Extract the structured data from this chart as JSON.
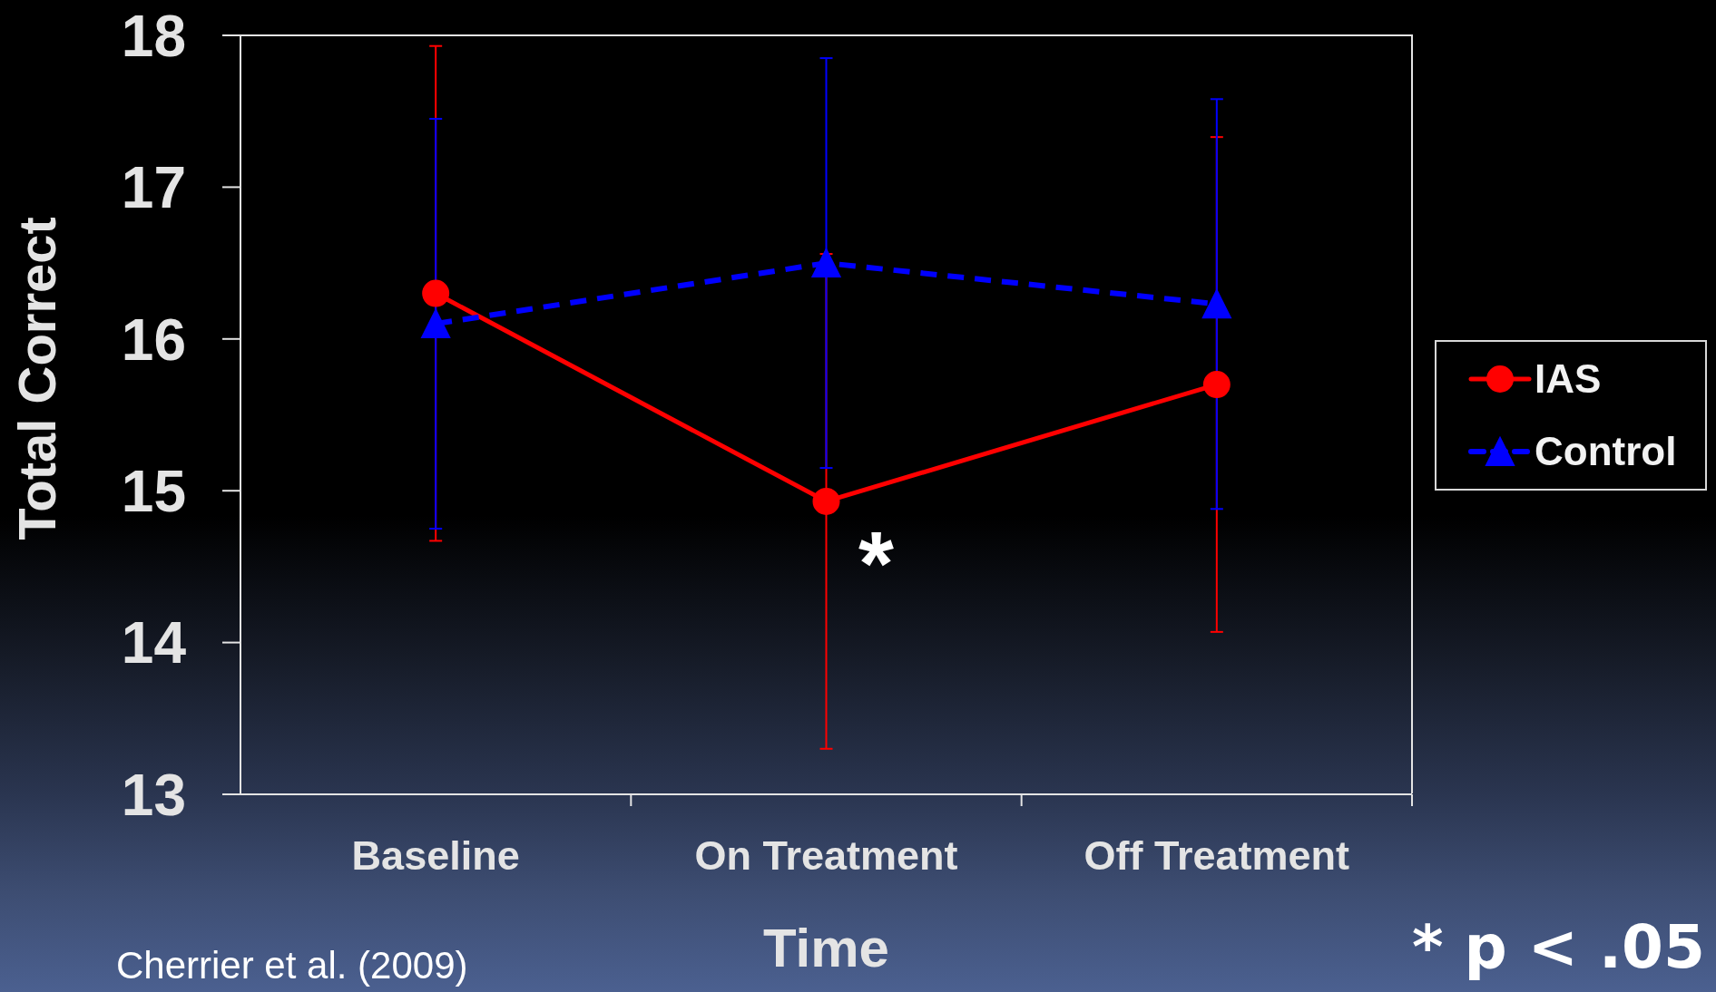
{
  "chart_data": {
    "type": "line",
    "ylabel": "Total Correct",
    "xlabel": "Time",
    "categories": [
      "Baseline",
      "On Treatment",
      "Off Treatment"
    ],
    "series": [
      {
        "name": "IAS",
        "color": "#ff0000",
        "values": [
          16.3,
          14.93,
          15.7
        ],
        "errors": [
          1.63,
          1.63,
          1.63
        ],
        "marker": "circle",
        "line_style": "solid"
      },
      {
        "name": "Control",
        "color": "#0000ff",
        "values": [
          16.1,
          16.5,
          16.23
        ],
        "errors": [
          1.35,
          1.35,
          1.35
        ],
        "marker": "triangle",
        "line_style": "dashed"
      }
    ],
    "ylim": [
      13,
      18
    ],
    "yticks": [
      13,
      14,
      15,
      16,
      17,
      18
    ],
    "legend": "right",
    "annotations": [
      "*",
      "* p < .05",
      "Cherrier et al. (2009)"
    ]
  }
}
